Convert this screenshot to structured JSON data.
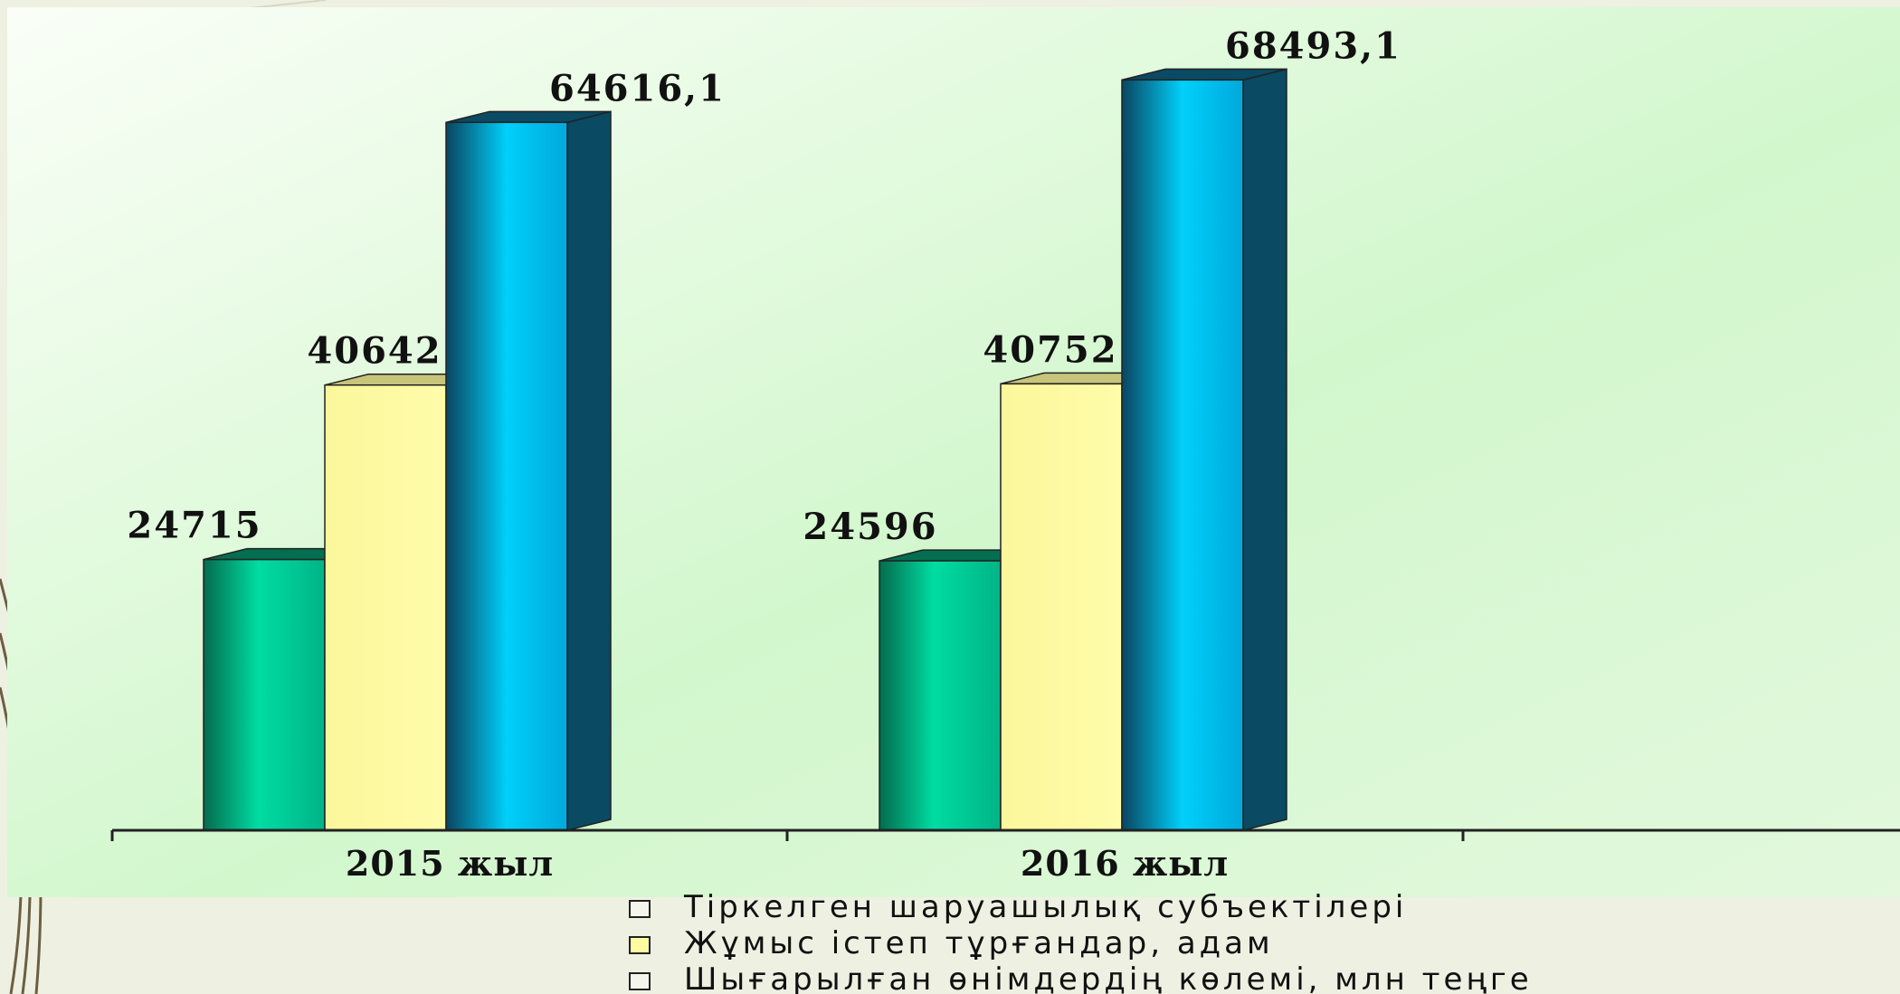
{
  "chart_data": {
    "type": "bar",
    "categories": [
      "2015 жыл",
      "2016 жыл"
    ],
    "series": [
      {
        "name": "Тіркелген шаруашылық субъектілері",
        "values": [
          24715,
          24596
        ],
        "labels": [
          "24715",
          "24596"
        ]
      },
      {
        "name": "Жұмыс істеп тұрғандар, адам",
        "values": [
          40642,
          40752
        ],
        "labels": [
          "40642",
          "40752"
        ]
      },
      {
        "name": "Шығарылған өнімдердің көлемі, млн теңге",
        "values": [
          64616.1,
          68493.1
        ],
        "labels": [
          "64616,1",
          "68493,1"
        ]
      }
    ],
    "ylim": [
      0,
      70000
    ],
    "grid": false,
    "legend_position": "bottom",
    "style": "3d-clustered-column"
  },
  "colors": {
    "background_top": "#f6fcf2",
    "background_bottom": "#c6f5c6",
    "page": "#eef0e2",
    "series": [
      "#00c896",
      "#fdfaa0",
      "#00c6f4"
    ],
    "series_dark": [
      "#036e50",
      "#c7c57a",
      "#0a4a63"
    ],
    "decor_lines": "#5a5036"
  }
}
